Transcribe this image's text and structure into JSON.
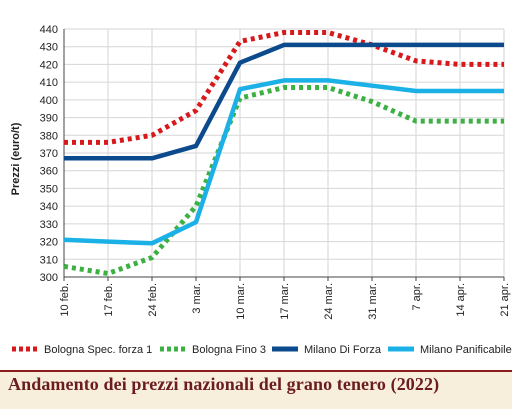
{
  "caption": "Andamento dei prezzi nazionali del grano tenero (2022)",
  "chart_data": {
    "type": "line",
    "ylabel": "Prezzi (euro/t)",
    "xlabel": "",
    "ylim": [
      300,
      440
    ],
    "yticks": [
      300,
      310,
      320,
      330,
      340,
      350,
      360,
      370,
      380,
      390,
      400,
      410,
      420,
      430,
      440
    ],
    "grid": true,
    "legend_position": "bottom",
    "categories": [
      "10 feb.",
      "17 feb.",
      "24 feb.",
      "3 mar.",
      "10 mar.",
      "17 mar.",
      "24 mar.",
      "31 mar.",
      "7 apr.",
      "14 apr.",
      "21 apr."
    ],
    "series": [
      {
        "name": "Bologna Spec. forza 1",
        "color": "#d7191c",
        "style": "dotted",
        "values": [
          376,
          376,
          380,
          394,
          433,
          438,
          438,
          431,
          422,
          420,
          420
        ]
      },
      {
        "name": "Bologna Fino 3",
        "color": "#3cb043",
        "style": "dotted",
        "values": [
          306,
          302,
          311,
          340,
          401,
          407,
          407,
          399,
          388,
          388,
          388
        ]
      },
      {
        "name": "Milano Di Forza",
        "color": "#0b4a8c",
        "style": "solid",
        "values": [
          367,
          367,
          367,
          374,
          421,
          431,
          431,
          431,
          431,
          431,
          431
        ]
      },
      {
        "name": "Milano Panificabile",
        "color": "#1bb0e6",
        "style": "solid",
        "values": [
          321,
          320,
          319,
          331,
          406,
          411,
          411,
          408,
          405,
          405,
          405
        ]
      }
    ]
  }
}
